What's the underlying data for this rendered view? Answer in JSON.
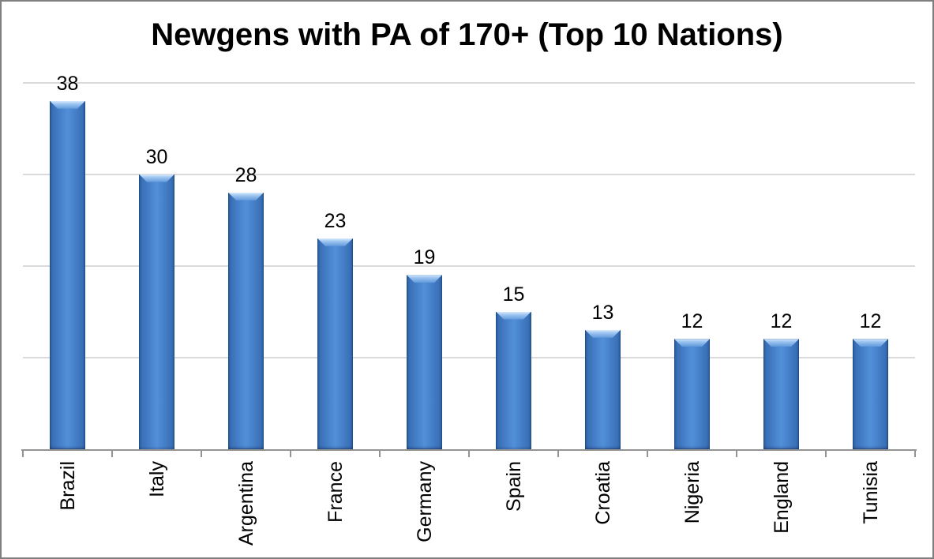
{
  "window": {
    "background": "#ffffff",
    "border_color": "#7f7f7f"
  },
  "chart_data": {
    "type": "bar",
    "title": "Newgens with PA of 170+ (Top 10 Nations)",
    "categories": [
      "Brazil",
      "Italy",
      "Argentina",
      "France",
      "Germany",
      "Spain",
      "Croatia",
      "Nigeria",
      "England",
      "Tunisia"
    ],
    "values": [
      38,
      30,
      28,
      23,
      19,
      15,
      13,
      12,
      12,
      12
    ],
    "xlabel": "",
    "ylabel": "",
    "ylim": [
      0,
      40
    ],
    "gridline_values": [
      10,
      20,
      30,
      40
    ],
    "grid": true,
    "legend": "none",
    "data_labels": true,
    "x_labels_rotation_degrees": -90,
    "colors": {
      "bar_fill_center": "#5190d8",
      "bar_fill_edge": "#275a9b",
      "bar_bevel_highlight": "#d8eafb",
      "gridline": "#dadada",
      "axis_line": "#949494",
      "title_text": "#000000",
      "label_text": "#000000"
    }
  }
}
